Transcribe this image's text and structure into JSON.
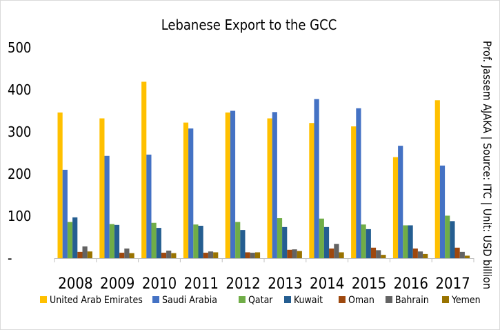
{
  "chart_data": {
    "type": "bar",
    "title": "Lebanese Export to the GCC",
    "side_note": "Prof. Jassem AJAKA | Source: ITC | Unit: USD billion",
    "categories": [
      "2008",
      "2009",
      "2010",
      "2011",
      "2012",
      "2013",
      "2014",
      "2015",
      "2016",
      "2017"
    ],
    "y_ticks": [
      "-",
      "100",
      "200",
      "300",
      "400",
      "500"
    ],
    "ylim": [
      0,
      500
    ],
    "grid": false,
    "legend_position": "bottom",
    "series": [
      {
        "name": "United Arab Emirates",
        "color": "#FFC000",
        "values": [
          346,
          332,
          419,
          322,
          346,
          332,
          321,
          313,
          240,
          375
        ]
      },
      {
        "name": "Saudi Arabia",
        "color": "#4472C4",
        "values": [
          210,
          243,
          246,
          308,
          350,
          347,
          378,
          356,
          267,
          220
        ]
      },
      {
        "name": "Qatar",
        "color": "#70AD47",
        "values": [
          86,
          81,
          84,
          80,
          86,
          95,
          94,
          80,
          78,
          101
        ]
      },
      {
        "name": "Kuwait",
        "color": "#255E91",
        "values": [
          97,
          79,
          72,
          77,
          67,
          74,
          74,
          69,
          78,
          88
        ]
      },
      {
        "name": "Oman",
        "color": "#9E480E",
        "values": [
          15,
          13,
          13,
          13,
          14,
          20,
          23,
          25,
          23,
          25
        ]
      },
      {
        "name": "Bahrain",
        "color": "#636363",
        "values": [
          28,
          23,
          18,
          16,
          13,
          21,
          34,
          19,
          16,
          15
        ]
      },
      {
        "name": "Yemen",
        "color": "#997300",
        "values": [
          16,
          12,
          12,
          14,
          14,
          17,
          14,
          8,
          10,
          6
        ]
      }
    ]
  }
}
